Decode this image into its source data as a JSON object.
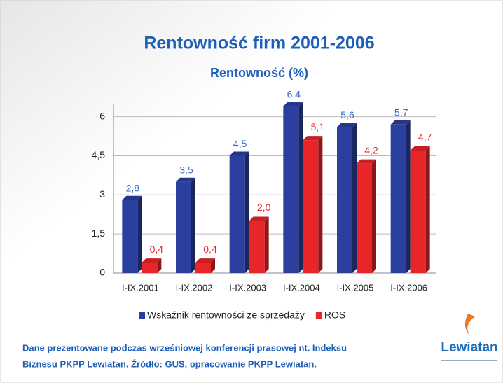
{
  "chart_data": {
    "type": "bar",
    "title": "Rentowność firm 2001-2006",
    "subtitle": "Rentowność (%)",
    "categories": [
      "I-IX.2001",
      "I-IX.2002",
      "I-IX.2003",
      "I-IX.2004",
      "I-IX.2005",
      "I-IX.2006"
    ],
    "series": [
      {
        "name": "Wskaźnik rentowności ze sprzedaży",
        "color": "#2b3f9f",
        "label_color": "#3a6cc6",
        "values": [
          2.8,
          3.5,
          4.5,
          6.4,
          5.6,
          5.7
        ],
        "value_labels": [
          "2,8",
          "3,5",
          "4,5",
          "6,4",
          "5,6",
          "5,7"
        ]
      },
      {
        "name": "ROS",
        "color": "#e8262a",
        "label_color": "#e8262a",
        "values": [
          0.4,
          0.4,
          2.0,
          5.1,
          4.2,
          4.7
        ],
        "value_labels": [
          "0,4",
          "0,4",
          "2,0",
          "5,1",
          "4,2",
          "4,7"
        ]
      }
    ],
    "ylim": [
      0,
      6.5
    ],
    "yticks": [
      0,
      {
        "value": 1.5,
        "label": "1,5"
      },
      3,
      {
        "value": 4.5,
        "label": "4,5"
      },
      6
    ],
    "grid": true,
    "notes": [
      "Dane prezentowane podczas wrześniowej konferencji prasowej nt. Indeksu",
      "Biznesu PKPP Lewiatan.  Źródło: GUS, opracowanie PKPP Lewiatan."
    ],
    "logo_text": "Lewiatan"
  }
}
